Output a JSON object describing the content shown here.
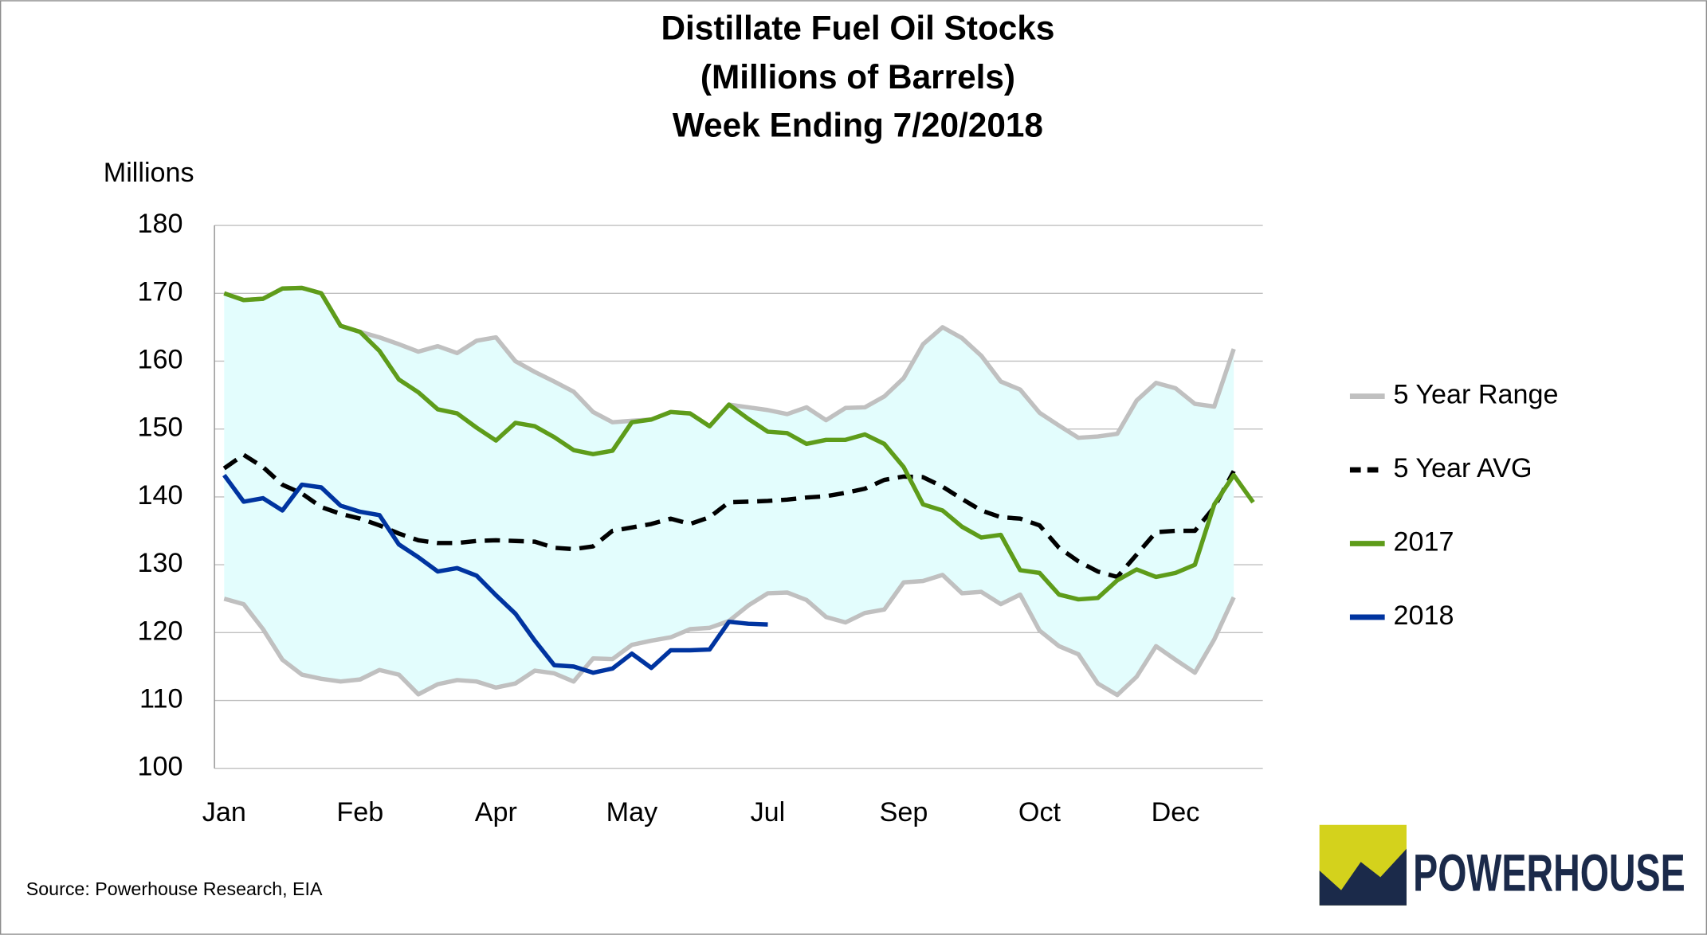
{
  "chart_data": {
    "type": "line",
    "title": [
      "Distillate Fuel Oil Stocks",
      "(Millions of Barrels)",
      "Week Ending 7/20/2018"
    ],
    "y_label": "Millions",
    "source": "Source: Powerhouse Research, EIA",
    "logo": "POWERHOUSE",
    "categories": [
      "Jan",
      null,
      null,
      null,
      null,
      null,
      null,
      "Feb",
      null,
      null,
      null,
      null,
      null,
      null,
      "Apr",
      null,
      null,
      null,
      null,
      null,
      null,
      "May",
      null,
      null,
      null,
      null,
      null,
      null,
      "Jul",
      null,
      null,
      null,
      null,
      null,
      null,
      "Sep",
      null,
      null,
      null,
      null,
      null,
      null,
      "Oct",
      null,
      null,
      null,
      null,
      null,
      null,
      "Dec",
      null,
      null,
      null,
      null
    ],
    "ylim": [
      100,
      180
    ],
    "yticks": [
      100,
      110,
      120,
      130,
      140,
      150,
      160,
      170,
      180
    ],
    "grid": true,
    "legend": "right",
    "series": [
      {
        "name": "5 Year Range",
        "color": "#c0c0c0",
        "fill": "#e3fdfd",
        "high": [
          170,
          169,
          169.2,
          170.7,
          170.8,
          170,
          165.2,
          164.3,
          163.5,
          162.5,
          161.4,
          162.2,
          161.2,
          163,
          163.5,
          160,
          158.4,
          157,
          155.5,
          152.5,
          151,
          151.2,
          151.4,
          152.5,
          152.3,
          150.4,
          153.6,
          153.2,
          152.8,
          152.2,
          153.2,
          151.3,
          153.1,
          153.2,
          154.8,
          157.5,
          162.5,
          165,
          163.4,
          160.8,
          157,
          155.8,
          152.4,
          150.5,
          148.7,
          148.9,
          149.3,
          154.2,
          156.8,
          156,
          153.7,
          153.3,
          161.8,
          null
        ],
        "low": [
          125,
          124.2,
          120.5,
          116,
          113.8,
          113.2,
          112.8,
          113.1,
          114.5,
          113.8,
          110.9,
          112.4,
          113,
          112.8,
          111.9,
          112.5,
          114.4,
          114,
          112.8,
          116.2,
          116.1,
          118.2,
          118.8,
          119.3,
          120.5,
          120.7,
          121.7,
          124,
          125.8,
          125.9,
          124.8,
          122.3,
          121.5,
          122.9,
          123.4,
          127.4,
          127.6,
          128.5,
          125.8,
          126,
          124.2,
          125.6,
          120.3,
          118,
          116.8,
          112.5,
          110.8,
          113.5,
          118,
          116,
          114.1,
          119,
          125.2,
          null
        ]
      },
      {
        "name": "5 Year AVG",
        "color": "#000000",
        "dashed": true,
        "values": [
          144.2,
          146.2,
          144.4,
          141.8,
          140.5,
          138.5,
          137.5,
          136.8,
          135.8,
          134.6,
          133.6,
          133.2,
          133.2,
          133.5,
          133.6,
          133.5,
          133.4,
          132.5,
          132.3,
          132.7,
          135,
          135.5,
          136,
          136.8,
          136,
          137,
          139.2,
          139.3,
          139.4,
          139.6,
          139.9,
          140.1,
          140.6,
          141.2,
          142.5,
          143,
          142.9,
          141.5,
          139.7,
          138,
          137,
          136.8,
          135.8,
          132.5,
          130.5,
          129,
          128.2,
          131.5,
          134.8,
          135,
          135,
          138.5,
          143.8,
          null
        ]
      },
      {
        "name": "2017",
        "color": "#5e9c1a",
        "values": [
          170,
          169,
          169.2,
          170.7,
          170.8,
          170,
          165.2,
          164.3,
          161.5,
          157.3,
          155.4,
          152.9,
          152.3,
          150.2,
          148.3,
          150.9,
          150.4,
          148.8,
          146.9,
          146.3,
          146.8,
          151,
          151.4,
          152.5,
          152.3,
          150.4,
          153.6,
          151.5,
          149.6,
          149.4,
          147.8,
          148.4,
          148.4,
          149.2,
          147.8,
          144.4,
          138.9,
          138,
          135.6,
          134,
          134.4,
          129.2,
          128.8,
          125.6,
          124.9,
          125.1,
          127.7,
          129.3,
          128.2,
          128.8,
          130,
          138.9,
          143.2,
          139.2
        ]
      },
      {
        "name": "2018",
        "color": "#0034a0",
        "values": [
          143.2,
          139.3,
          139.8,
          138,
          141.8,
          141.4,
          138.7,
          137.8,
          137.3,
          133,
          131.1,
          129,
          129.5,
          128.4,
          125.5,
          122.8,
          118.8,
          115.2,
          115,
          114.1,
          114.7,
          116.9,
          114.8,
          117.4,
          117.4,
          117.5,
          121.6,
          121.3,
          121.2,
          null,
          null,
          null,
          null,
          null,
          null,
          null,
          null,
          null,
          null,
          null,
          null,
          null,
          null,
          null,
          null,
          null,
          null,
          null,
          null,
          null,
          null,
          null,
          null,
          null
        ]
      }
    ]
  }
}
